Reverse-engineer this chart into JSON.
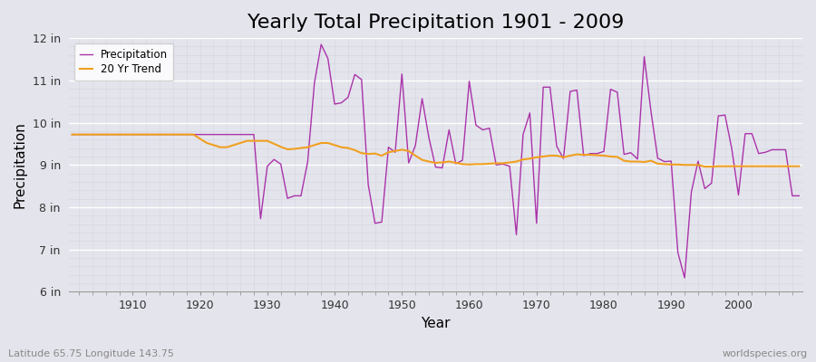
{
  "title": "Yearly Total Precipitation 1901 - 2009",
  "xlabel": "Year",
  "ylabel": "Precipitation",
  "subtitle_left": "Latitude 65.75 Longitude 143.75",
  "subtitle_right": "worldspecies.org",
  "years": [
    1901,
    1902,
    1903,
    1904,
    1905,
    1906,
    1907,
    1908,
    1909,
    1910,
    1911,
    1912,
    1913,
    1914,
    1915,
    1916,
    1917,
    1918,
    1919,
    1920,
    1921,
    1922,
    1923,
    1924,
    1925,
    1926,
    1927,
    1928,
    1929,
    1930,
    1931,
    1932,
    1933,
    1934,
    1935,
    1936,
    1937,
    1938,
    1939,
    1940,
    1941,
    1942,
    1943,
    1944,
    1945,
    1946,
    1947,
    1948,
    1949,
    1950,
    1951,
    1952,
    1953,
    1954,
    1955,
    1956,
    1957,
    1958,
    1959,
    1960,
    1961,
    1962,
    1963,
    1964,
    1965,
    1966,
    1967,
    1968,
    1969,
    1970,
    1971,
    1972,
    1973,
    1974,
    1975,
    1976,
    1977,
    1978,
    1979,
    1980,
    1981,
    1982,
    1983,
    1984,
    1985,
    1986,
    1987,
    1988,
    1989,
    1990,
    1991,
    1992,
    1993,
    1994,
    1995,
    1996,
    1997,
    1998,
    1999,
    2000,
    2001,
    2002,
    2003,
    2004,
    2005,
    2006,
    2007,
    2008,
    2009
  ],
  "precip_in": [
    9.72,
    9.72,
    9.72,
    9.72,
    9.72,
    9.72,
    9.72,
    9.72,
    9.72,
    9.72,
    9.72,
    9.72,
    9.72,
    9.72,
    9.72,
    9.72,
    9.72,
    9.72,
    9.72,
    9.72,
    9.72,
    9.72,
    9.72,
    9.72,
    9.72,
    9.72,
    9.72,
    9.72,
    7.73,
    8.97,
    9.13,
    9.02,
    8.21,
    8.27,
    8.27,
    9.08,
    10.94,
    11.85,
    11.52,
    10.44,
    10.47,
    10.6,
    11.14,
    11.02,
    8.53,
    7.62,
    7.65,
    9.42,
    9.3,
    11.15,
    9.05,
    9.46,
    10.57,
    9.65,
    8.95,
    8.93,
    9.83,
    9.03,
    9.11,
    10.98,
    9.94,
    9.83,
    9.87,
    9.0,
    9.02,
    8.97,
    7.35,
    9.72,
    10.23,
    7.62,
    10.84,
    10.84,
    9.44,
    9.15,
    10.74,
    10.77,
    9.22,
    9.27,
    9.27,
    9.32,
    10.79,
    10.72,
    9.25,
    9.29,
    9.14,
    11.56,
    10.27,
    9.16,
    9.08,
    9.09,
    6.93,
    6.33,
    8.36,
    9.09,
    8.44,
    8.57,
    10.16,
    10.18,
    9.39,
    8.29,
    9.74,
    9.74,
    9.27,
    9.3,
    9.36,
    9.36,
    9.36,
    8.27,
    8.27
  ],
  "trend_in": [
    9.72,
    9.72,
    9.72,
    9.72,
    9.72,
    9.72,
    9.72,
    9.72,
    9.72,
    9.72,
    9.72,
    9.72,
    9.72,
    9.72,
    9.72,
    9.72,
    9.72,
    9.72,
    9.72,
    9.62,
    9.52,
    9.47,
    9.42,
    9.42,
    9.47,
    9.52,
    9.57,
    9.57,
    9.57,
    9.57,
    9.5,
    9.43,
    9.37,
    9.38,
    9.4,
    9.42,
    9.47,
    9.52,
    9.52,
    9.47,
    9.42,
    9.4,
    9.35,
    9.28,
    9.26,
    9.27,
    9.22,
    9.3,
    9.33,
    9.36,
    9.33,
    9.22,
    9.12,
    9.08,
    9.05,
    9.06,
    9.08,
    9.05,
    9.02,
    9.01,
    9.02,
    9.02,
    9.03,
    9.04,
    9.04,
    9.06,
    9.08,
    9.13,
    9.15,
    9.18,
    9.2,
    9.22,
    9.22,
    9.18,
    9.22,
    9.25,
    9.24,
    9.24,
    9.23,
    9.22,
    9.2,
    9.19,
    9.1,
    9.08,
    9.08,
    9.07,
    9.1,
    9.03,
    9.02,
    9.01,
    9.01,
    9.0,
    9.0,
    9.0,
    8.96,
    8.96,
    8.97,
    8.97,
    8.97,
    8.97,
    8.97,
    8.97,
    8.97,
    8.97,
    8.97,
    8.97,
    8.97,
    8.97,
    8.97
  ],
  "precip_color": "#aa33aa",
  "trend_color": "#f0a020",
  "bg_color": "#e4e4ec",
  "plot_bg_color": "#e4e4ec",
  "grid_color_major": "#ffffff",
  "grid_color_minor": "#d8d8e4",
  "ylim": [
    6,
    12
  ],
  "yticks": [
    6,
    7,
    8,
    9,
    10,
    11,
    12
  ],
  "ytick_labels": [
    "6 in",
    "7 in",
    "8 in",
    "9 in",
    "10 in",
    "11 in",
    "12 in"
  ],
  "xticks": [
    1910,
    1920,
    1930,
    1940,
    1950,
    1960,
    1970,
    1980,
    1990,
    2000
  ],
  "title_fontsize": 16,
  "label_fontsize": 11,
  "tick_fontsize": 9,
  "annot_fontsize": 8
}
